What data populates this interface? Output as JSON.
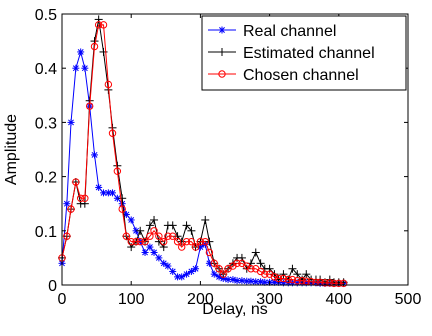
{
  "chart_data": {
    "type": "line",
    "title": "",
    "xlabel": "Delay, ns",
    "ylabel": "Amplitude",
    "xlim": [
      0,
      500
    ],
    "ylim": [
      0,
      0.5
    ],
    "xticks": [
      "0",
      "100",
      "200",
      "300",
      "400",
      "500"
    ],
    "yticks": [
      "0",
      "0.1",
      "0.2",
      "0.3",
      "0.4",
      "0.5"
    ],
    "grid": false,
    "legend_position": "top-right",
    "series": [
      {
        "name": "Real channel",
        "color": "#0000ff",
        "marker": "asterisk",
        "x": [
          0,
          7,
          13,
          20,
          27,
          33,
          40,
          47,
          53,
          60,
          67,
          73,
          80,
          87,
          93,
          100,
          107,
          113,
          120,
          127,
          133,
          140,
          147,
          153,
          160,
          167,
          173,
          180,
          187,
          193,
          200,
          207,
          213,
          220,
          227,
          233,
          240,
          247,
          253,
          260,
          267,
          273,
          280,
          287,
          293,
          300,
          307,
          313,
          320,
          327,
          333,
          340,
          347,
          353,
          360,
          367,
          373,
          380,
          387,
          393,
          400,
          407
        ],
        "y": [
          0.04,
          0.15,
          0.3,
          0.4,
          0.43,
          0.4,
          0.33,
          0.24,
          0.18,
          0.17,
          0.17,
          0.17,
          0.16,
          0.15,
          0.13,
          0.12,
          0.1,
          0.08,
          0.06,
          0.07,
          0.06,
          0.05,
          0.04,
          0.035,
          0.025,
          0.015,
          0.015,
          0.02,
          0.025,
          0.03,
          0.07,
          0.075,
          0.04,
          0.02,
          0.015,
          0.012,
          0.01,
          0.01,
          0.008,
          0.008,
          0.007,
          0.007,
          0.006,
          0.006,
          0.005,
          0.005,
          0.005,
          0.005,
          0.004,
          0.004,
          0.004,
          0.004,
          0.004,
          0.004,
          0.004,
          0.004,
          0.003,
          0.003,
          0.003,
          0.003,
          0.003,
          0.003
        ]
      },
      {
        "name": "Estimated channel",
        "color": "#000000",
        "marker": "plus",
        "x": [
          0,
          7,
          13,
          20,
          27,
          33,
          40,
          47,
          53,
          60,
          67,
          73,
          80,
          87,
          93,
          100,
          107,
          113,
          120,
          127,
          133,
          140,
          147,
          153,
          160,
          167,
          173,
          180,
          187,
          193,
          200,
          207,
          213,
          220,
          227,
          233,
          240,
          247,
          253,
          260,
          267,
          273,
          280,
          287,
          293,
          300,
          307,
          313,
          320,
          327,
          333,
          340,
          347,
          353,
          360,
          367,
          373,
          380,
          387,
          393,
          400,
          407
        ],
        "y": [
          0.05,
          0.09,
          0.14,
          0.19,
          0.15,
          0.15,
          0.34,
          0.45,
          0.49,
          0.43,
          0.36,
          0.29,
          0.22,
          0.16,
          0.09,
          0.07,
          0.08,
          0.1,
          0.08,
          0.11,
          0.12,
          0.08,
          0.07,
          0.11,
          0.11,
          0.09,
          0.08,
          0.11,
          0.1,
          0.07,
          0.08,
          0.12,
          0.08,
          0.04,
          0.03,
          0.02,
          0.03,
          0.04,
          0.05,
          0.05,
          0.03,
          0.04,
          0.06,
          0.04,
          0.03,
          0.03,
          0.02,
          0.01,
          0.02,
          0.01,
          0.03,
          0.02,
          0.01,
          0.02,
          0.01,
          0.01,
          0.01,
          0.005,
          0.01,
          0.005,
          0.005,
          0.005
        ]
      },
      {
        "name": "Chosen channel",
        "color": "#ff0000",
        "marker": "circle",
        "x": [
          0,
          7,
          13,
          20,
          27,
          33,
          40,
          47,
          53,
          60,
          67,
          73,
          80,
          87,
          93,
          100,
          107,
          113,
          120,
          127,
          133,
          140,
          147,
          153,
          160,
          167,
          173,
          180,
          187,
          193,
          200,
          207,
          213,
          220,
          227,
          233,
          240,
          247,
          253,
          260,
          267,
          273,
          280,
          287,
          293,
          300,
          307,
          313,
          320,
          327,
          333,
          340,
          347,
          353,
          360,
          367,
          373,
          380,
          387,
          393,
          400,
          407
        ],
        "y": [
          0.05,
          0.09,
          0.14,
          0.19,
          0.16,
          0.16,
          0.33,
          0.44,
          0.48,
          0.48,
          0.37,
          0.28,
          0.21,
          0.14,
          0.09,
          0.08,
          0.08,
          0.08,
          0.08,
          0.09,
          0.1,
          0.09,
          0.08,
          0.09,
          0.09,
          0.08,
          0.07,
          0.08,
          0.08,
          0.07,
          0.08,
          0.08,
          0.06,
          0.04,
          0.03,
          0.02,
          0.03,
          0.035,
          0.04,
          0.04,
          0.035,
          0.03,
          0.03,
          0.025,
          0.02,
          0.02,
          0.015,
          0.012,
          0.012,
          0.01,
          0.01,
          0.008,
          0.008,
          0.007,
          0.006,
          0.005,
          0.005,
          0.004,
          0.004,
          0.003,
          0.003,
          0.003
        ]
      }
    ]
  }
}
